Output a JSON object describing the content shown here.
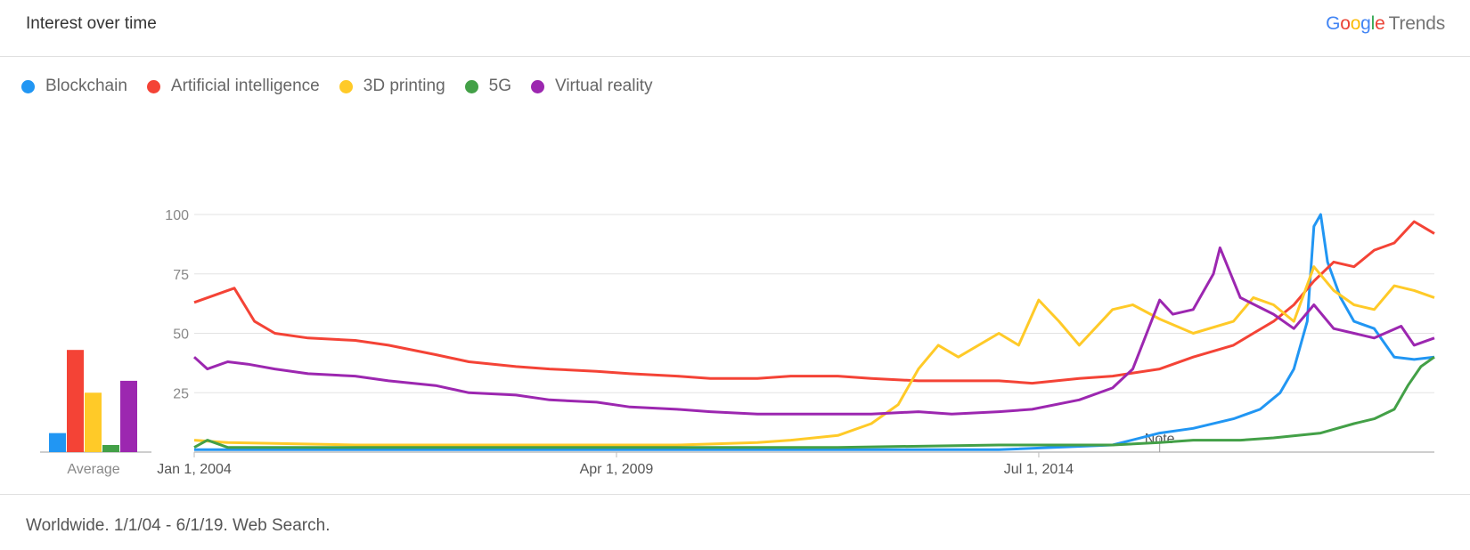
{
  "header": {
    "title": "Interest over time",
    "brand_google": [
      "G",
      "o",
      "o",
      "g",
      "l",
      "e"
    ],
    "brand_trends": "Trends",
    "brand_colors": [
      "#4285F4",
      "#EA4335",
      "#FBBC05",
      "#4285F4",
      "#34A853",
      "#EA4335"
    ]
  },
  "footer": {
    "text": "Worldwide. 1/1/04 - 6/1/19. Web Search."
  },
  "chart_data": {
    "type": "line",
    "x_range": [
      "2004-01-01",
      "2019-06-01"
    ],
    "ylim": [
      0,
      100
    ],
    "yticks": [
      25,
      50,
      75,
      100
    ],
    "xticks": [
      {
        "date": "2004-01-01",
        "label": "Jan 1, 2004"
      },
      {
        "date": "2009-04-01",
        "label": "Apr 1, 2009"
      },
      {
        "date": "2014-07-01",
        "label": "Jul 1, 2014"
      }
    ],
    "annotation": {
      "date": "2016-01-01",
      "label": "Note"
    },
    "average_label": "Average",
    "grid": true,
    "legend_position": "top-left",
    "series": [
      {
        "name": "Blockchain",
        "color": "#2196F3",
        "average": 8,
        "points": [
          [
            "2004-01-01",
            1
          ],
          [
            "2012-06-01",
            1
          ],
          [
            "2014-01-01",
            1
          ],
          [
            "2015-06-01",
            3
          ],
          [
            "2016-01-01",
            8
          ],
          [
            "2016-06-01",
            10
          ],
          [
            "2016-12-01",
            14
          ],
          [
            "2017-04-01",
            18
          ],
          [
            "2017-07-01",
            25
          ],
          [
            "2017-09-01",
            35
          ],
          [
            "2017-11-01",
            55
          ],
          [
            "2017-12-01",
            95
          ],
          [
            "2018-01-01",
            100
          ],
          [
            "2018-02-01",
            80
          ],
          [
            "2018-04-01",
            65
          ],
          [
            "2018-06-01",
            55
          ],
          [
            "2018-09-01",
            52
          ],
          [
            "2018-12-01",
            40
          ],
          [
            "2019-03-01",
            39
          ],
          [
            "2019-06-01",
            40
          ]
        ]
      },
      {
        "name": "Artificial intelligence",
        "color": "#F44336",
        "average": 43,
        "points": [
          [
            "2004-01-01",
            63
          ],
          [
            "2004-04-01",
            66
          ],
          [
            "2004-07-01",
            69
          ],
          [
            "2004-10-01",
            55
          ],
          [
            "2005-01-01",
            50
          ],
          [
            "2005-06-01",
            48
          ],
          [
            "2006-01-01",
            47
          ],
          [
            "2006-06-01",
            45
          ],
          [
            "2007-01-01",
            41
          ],
          [
            "2007-06-01",
            38
          ],
          [
            "2008-01-01",
            36
          ],
          [
            "2008-06-01",
            35
          ],
          [
            "2009-01-01",
            34
          ],
          [
            "2009-06-01",
            33
          ],
          [
            "2010-01-01",
            32
          ],
          [
            "2010-06-01",
            31
          ],
          [
            "2011-01-01",
            31
          ],
          [
            "2011-06-01",
            32
          ],
          [
            "2012-01-01",
            32
          ],
          [
            "2012-06-01",
            31
          ],
          [
            "2013-01-01",
            30
          ],
          [
            "2013-06-01",
            30
          ],
          [
            "2014-01-01",
            30
          ],
          [
            "2014-06-01",
            29
          ],
          [
            "2015-01-01",
            31
          ],
          [
            "2015-06-01",
            32
          ],
          [
            "2016-01-01",
            35
          ],
          [
            "2016-06-01",
            40
          ],
          [
            "2016-12-01",
            45
          ],
          [
            "2017-03-01",
            50
          ],
          [
            "2017-06-01",
            55
          ],
          [
            "2017-09-01",
            62
          ],
          [
            "2017-12-01",
            72
          ],
          [
            "2018-03-01",
            80
          ],
          [
            "2018-06-01",
            78
          ],
          [
            "2018-09-01",
            85
          ],
          [
            "2018-12-01",
            88
          ],
          [
            "2019-03-01",
            97
          ],
          [
            "2019-06-01",
            92
          ]
        ]
      },
      {
        "name": "3D printing",
        "color": "#FFCA28",
        "average": 25,
        "points": [
          [
            "2004-01-01",
            5
          ],
          [
            "2004-06-01",
            4
          ],
          [
            "2006-01-01",
            3
          ],
          [
            "2008-01-01",
            3
          ],
          [
            "2010-01-01",
            3
          ],
          [
            "2011-01-01",
            4
          ],
          [
            "2011-06-01",
            5
          ],
          [
            "2012-01-01",
            7
          ],
          [
            "2012-06-01",
            12
          ],
          [
            "2012-10-01",
            20
          ],
          [
            "2013-01-01",
            35
          ],
          [
            "2013-04-01",
            45
          ],
          [
            "2013-07-01",
            40
          ],
          [
            "2014-01-01",
            50
          ],
          [
            "2014-04-01",
            45
          ],
          [
            "2014-07-01",
            64
          ],
          [
            "2014-10-01",
            55
          ],
          [
            "2015-01-01",
            45
          ],
          [
            "2015-06-01",
            60
          ],
          [
            "2015-09-01",
            62
          ],
          [
            "2016-01-01",
            56
          ],
          [
            "2016-06-01",
            50
          ],
          [
            "2016-12-01",
            55
          ],
          [
            "2017-03-01",
            65
          ],
          [
            "2017-06-01",
            62
          ],
          [
            "2017-09-01",
            55
          ],
          [
            "2017-12-01",
            78
          ],
          [
            "2018-03-01",
            68
          ],
          [
            "2018-06-01",
            62
          ],
          [
            "2018-09-01",
            60
          ],
          [
            "2018-12-01",
            70
          ],
          [
            "2019-03-01",
            68
          ],
          [
            "2019-06-01",
            65
          ]
        ]
      },
      {
        "name": "5G",
        "color": "#43A047",
        "average": 3,
        "points": [
          [
            "2004-01-01",
            2
          ],
          [
            "2004-03-01",
            5
          ],
          [
            "2004-06-01",
            2
          ],
          [
            "2006-01-01",
            2
          ],
          [
            "2008-01-01",
            2
          ],
          [
            "2010-01-01",
            2
          ],
          [
            "2012-01-01",
            2
          ],
          [
            "2014-01-01",
            3
          ],
          [
            "2015-01-01",
            3
          ],
          [
            "2015-06-01",
            3
          ],
          [
            "2016-01-01",
            4
          ],
          [
            "2016-06-01",
            5
          ],
          [
            "2017-01-01",
            5
          ],
          [
            "2017-06-01",
            6
          ],
          [
            "2018-01-01",
            8
          ],
          [
            "2018-06-01",
            12
          ],
          [
            "2018-09-01",
            14
          ],
          [
            "2018-12-01",
            18
          ],
          [
            "2019-02-01",
            28
          ],
          [
            "2019-04-01",
            36
          ],
          [
            "2019-06-01",
            40
          ]
        ]
      },
      {
        "name": "Virtual reality",
        "color": "#9C27B0",
        "average": 30,
        "points": [
          [
            "2004-01-01",
            40
          ],
          [
            "2004-03-01",
            35
          ],
          [
            "2004-06-01",
            38
          ],
          [
            "2004-09-01",
            37
          ],
          [
            "2005-01-01",
            35
          ],
          [
            "2005-06-01",
            33
          ],
          [
            "2006-01-01",
            32
          ],
          [
            "2006-06-01",
            30
          ],
          [
            "2007-01-01",
            28
          ],
          [
            "2007-06-01",
            25
          ],
          [
            "2008-01-01",
            24
          ],
          [
            "2008-06-01",
            22
          ],
          [
            "2009-01-01",
            21
          ],
          [
            "2009-06-01",
            19
          ],
          [
            "2010-01-01",
            18
          ],
          [
            "2010-06-01",
            17
          ],
          [
            "2011-01-01",
            16
          ],
          [
            "2011-06-01",
            16
          ],
          [
            "2012-01-01",
            16
          ],
          [
            "2012-06-01",
            16
          ],
          [
            "2013-01-01",
            17
          ],
          [
            "2013-06-01",
            16
          ],
          [
            "2014-01-01",
            17
          ],
          [
            "2014-06-01",
            18
          ],
          [
            "2015-01-01",
            22
          ],
          [
            "2015-06-01",
            27
          ],
          [
            "2015-09-01",
            35
          ],
          [
            "2016-01-01",
            64
          ],
          [
            "2016-03-01",
            58
          ],
          [
            "2016-06-01",
            60
          ],
          [
            "2016-09-01",
            75
          ],
          [
            "2016-10-01",
            86
          ],
          [
            "2017-01-01",
            65
          ],
          [
            "2017-06-01",
            58
          ],
          [
            "2017-09-01",
            52
          ],
          [
            "2017-12-01",
            62
          ],
          [
            "2018-03-01",
            52
          ],
          [
            "2018-06-01",
            50
          ],
          [
            "2018-09-01",
            48
          ],
          [
            "2019-01-01",
            53
          ],
          [
            "2019-03-01",
            45
          ],
          [
            "2019-06-01",
            48
          ]
        ]
      }
    ]
  }
}
